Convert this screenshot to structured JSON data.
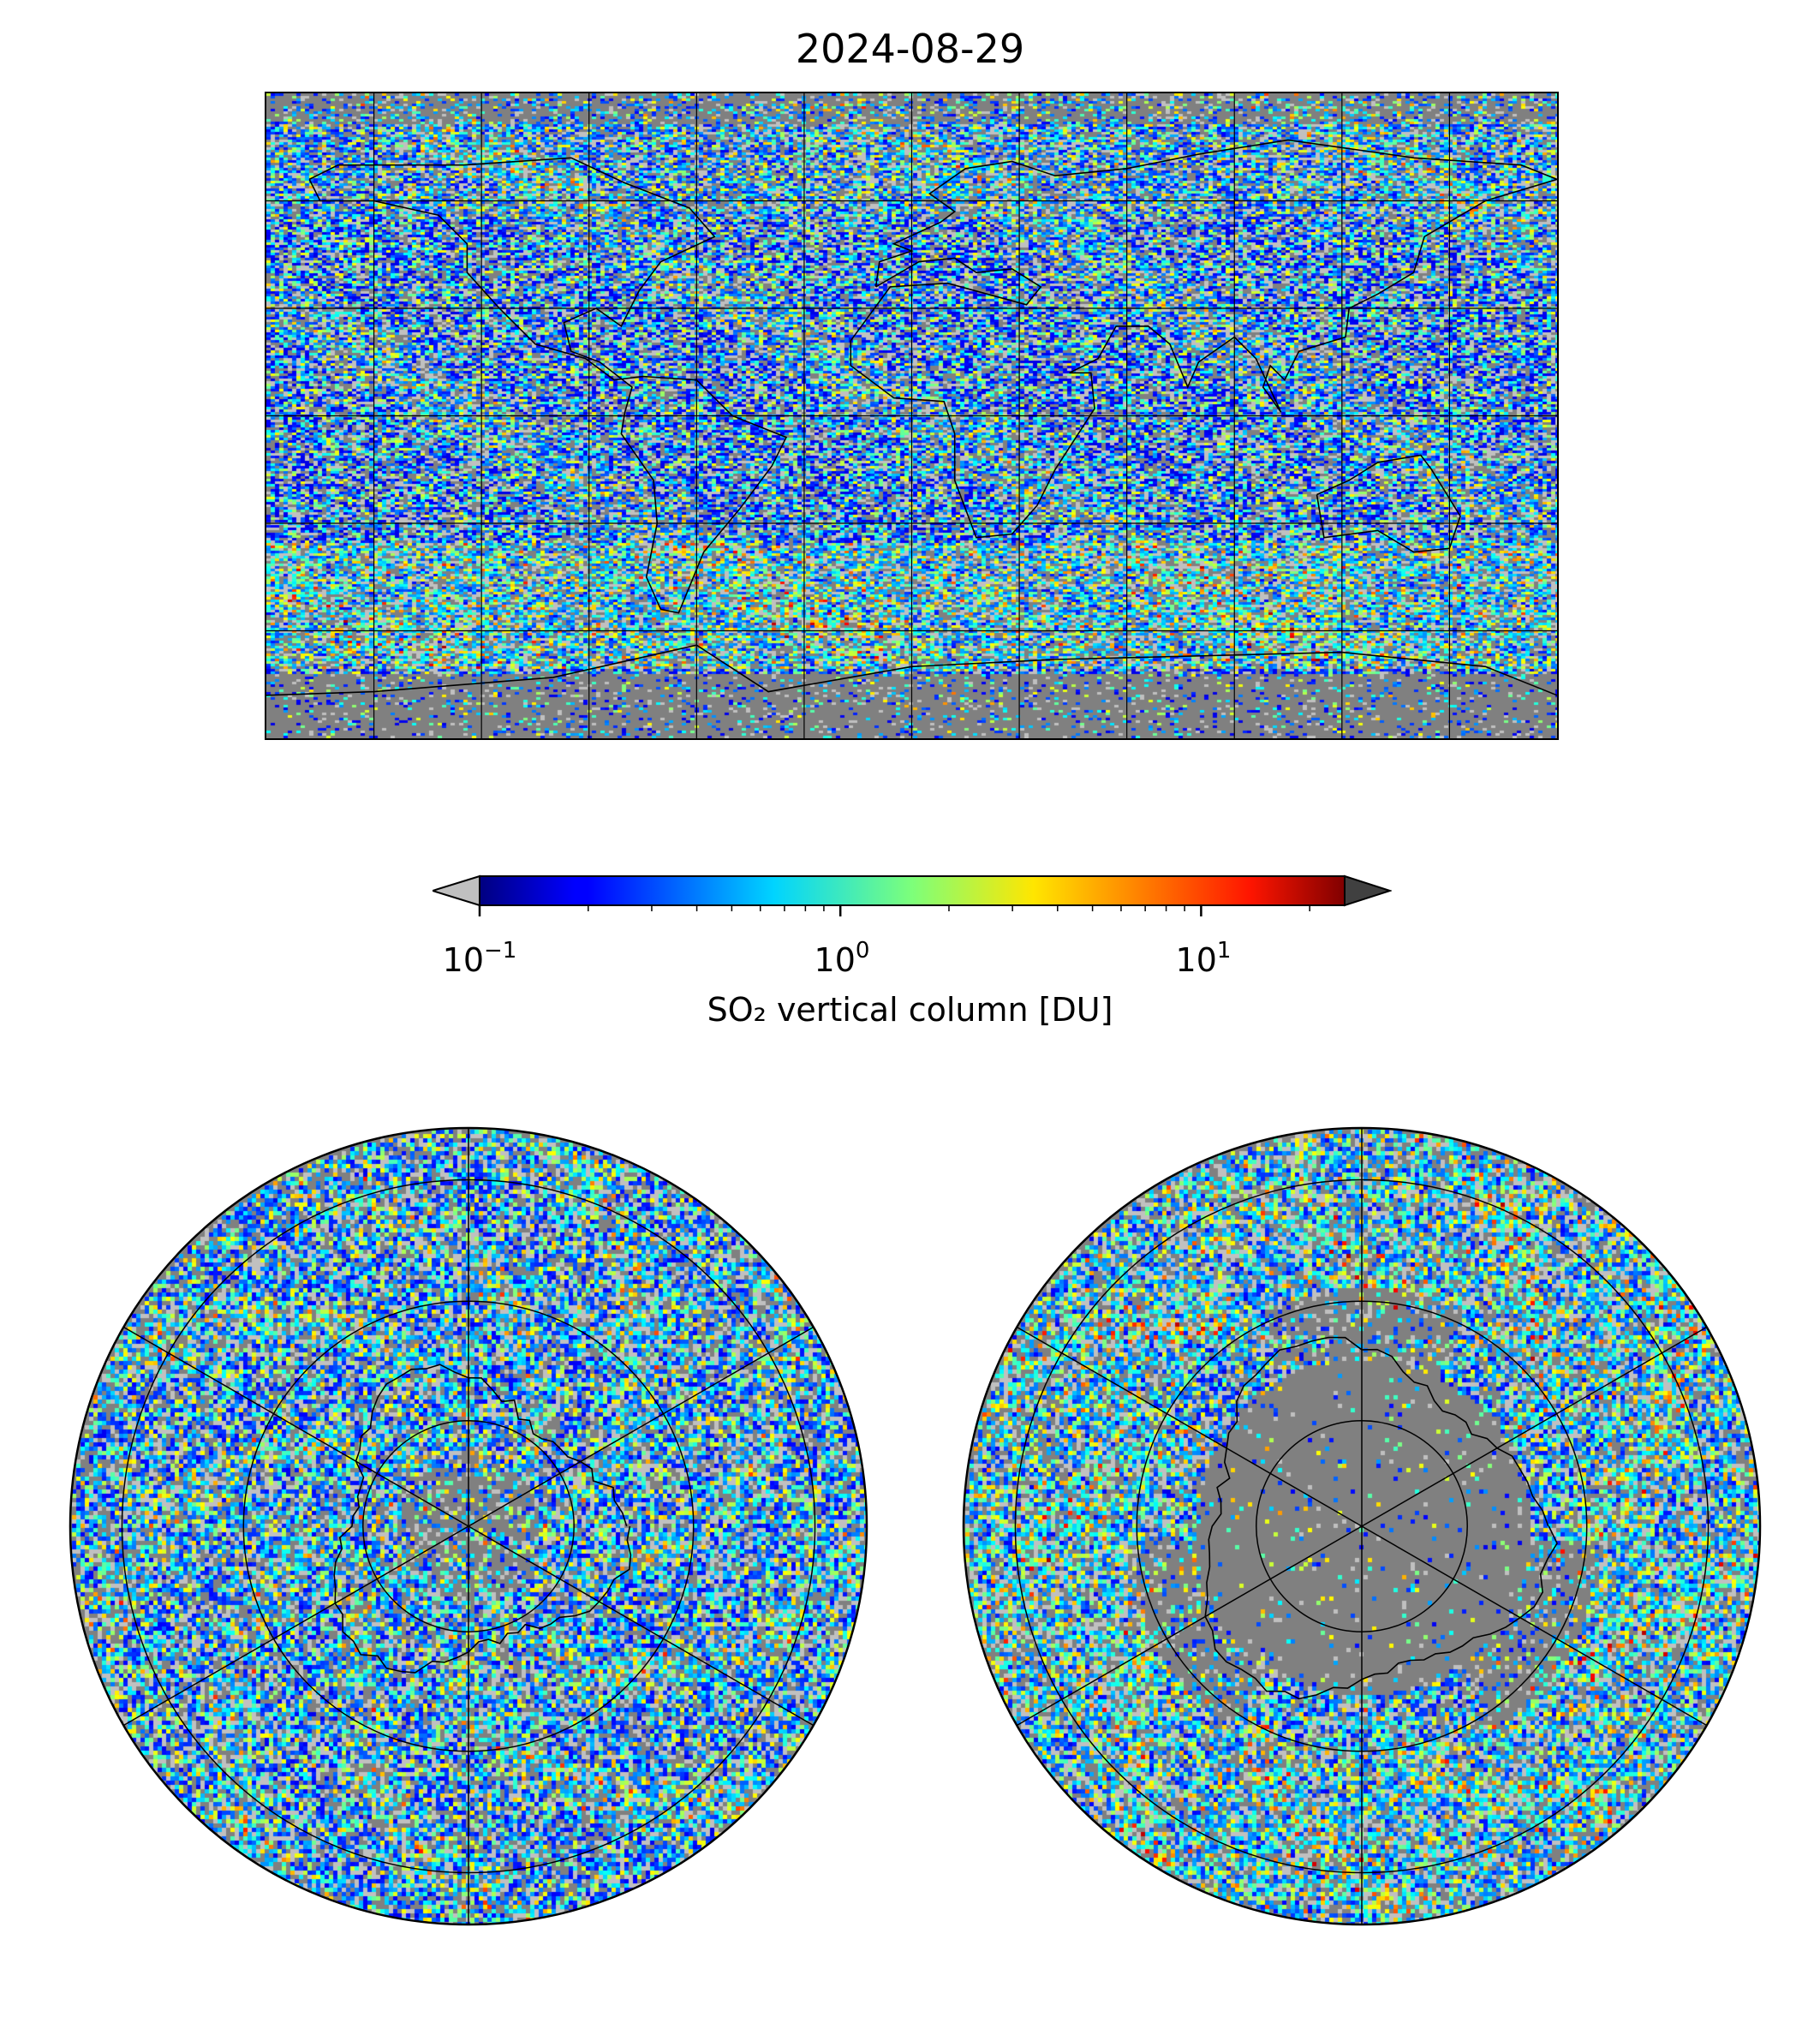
{
  "figure": {
    "title": "2024-08-29"
  },
  "colorbar": {
    "label": "SO₂ vertical column [DU]",
    "scale": "log",
    "range": [
      0.1,
      25
    ],
    "colormap": "jet",
    "extend": "both",
    "under_color": "#c0c0c0",
    "over_color": "#404040",
    "ticks": [
      {
        "base": "10",
        "exp": "−1",
        "value": 0.1
      },
      {
        "base": "10",
        "exp": "0",
        "value": 1
      },
      {
        "base": "10",
        "exp": "1",
        "value": 10
      }
    ]
  },
  "colors": {
    "no_data": "#808080",
    "below_range": "#c0c0c0",
    "coastline": "#000000",
    "gridline": "#000000"
  },
  "maps": {
    "global": {
      "projection": "equirectangular",
      "lon_range": [
        -180,
        180
      ],
      "lat_range": [
        -90,
        90
      ],
      "grid_lon_step": 30,
      "grid_lat_step": 30
    },
    "north_polar": {
      "projection": "north-polar-stereographic"
    },
    "south_polar": {
      "projection": "south-polar-stereographic"
    }
  }
}
